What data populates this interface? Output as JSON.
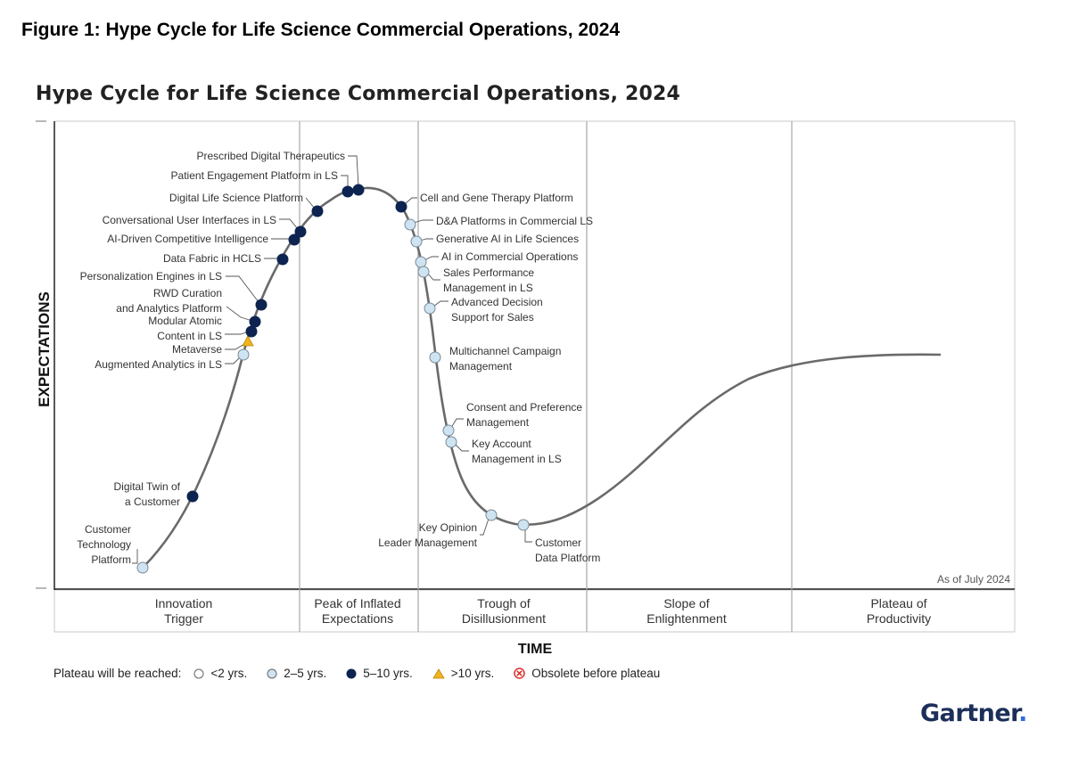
{
  "figure_caption": "Figure 1: Hype Cycle for Life Science Commercial Operations, 2024",
  "chart_data": {
    "type": "scatter",
    "title": "Hype Cycle for Life Science Commercial Operations, 2024",
    "xlabel": "TIME",
    "ylabel": "EXPECTATIONS",
    "as_of": "As of July 2024",
    "phases": [
      "Innovation Trigger",
      "Peak of Inflated Expectations",
      "Trough of Disillusionment",
      "Slope of Enlightenment",
      "Plateau of Productivity"
    ],
    "legend_title": "Plateau will be reached:",
    "legend": [
      {
        "key": "lt2",
        "label": "<2 yrs.",
        "color": "#ffffff"
      },
      {
        "key": "2to5",
        "label": "2–5 yrs.",
        "color": "#cfe4f2"
      },
      {
        "key": "5to10",
        "label": "5–10 yrs.",
        "color": "#0d2451"
      },
      {
        "key": "gt10",
        "label": ">10 yrs.",
        "color": "#f2b41e"
      },
      {
        "key": "obsolete",
        "label": "Obsolete before plateau",
        "color": "#d9302c"
      }
    ],
    "technologies": [
      {
        "name": "Customer Technology Platform",
        "phase": "Innovation Trigger",
        "plateau": "2to5"
      },
      {
        "name": "Digital Twin of a Customer",
        "phase": "Innovation Trigger",
        "plateau": "5to10"
      },
      {
        "name": "Augmented Analytics in LS",
        "phase": "Innovation Trigger",
        "plateau": "2to5"
      },
      {
        "name": "Metaverse",
        "phase": "Innovation Trigger",
        "plateau": "gt10"
      },
      {
        "name": "Modular Atomic Content in LS",
        "phase": "Innovation Trigger",
        "plateau": "5to10"
      },
      {
        "name": "RWD Curation and Analytics Platform",
        "phase": "Innovation Trigger",
        "plateau": "5to10"
      },
      {
        "name": "Personalization Engines in LS",
        "phase": "Innovation Trigger",
        "plateau": "5to10"
      },
      {
        "name": "Data Fabric in HCLS",
        "phase": "Innovation Trigger",
        "plateau": "5to10"
      },
      {
        "name": "AI-Driven Competitive Intelligence",
        "phase": "Innovation Trigger",
        "plateau": "5to10"
      },
      {
        "name": "Conversational User Interfaces in LS",
        "phase": "Innovation Trigger",
        "plateau": "5to10"
      },
      {
        "name": "Digital Life Science Platform",
        "phase": "Peak of Inflated Expectations",
        "plateau": "5to10"
      },
      {
        "name": "Patient Engagement Platform in LS",
        "phase": "Peak of Inflated Expectations",
        "plateau": "5to10"
      },
      {
        "name": "Prescribed Digital Therapeutics",
        "phase": "Peak of Inflated Expectations",
        "plateau": "5to10"
      },
      {
        "name": "Cell and Gene Therapy Platform",
        "phase": "Peak of Inflated Expectations",
        "plateau": "5to10"
      },
      {
        "name": "D&A Platforms in Commercial LS",
        "phase": "Peak of Inflated Expectations",
        "plateau": "2to5"
      },
      {
        "name": "Generative AI in Life Sciences",
        "phase": "Trough of Disillusionment",
        "plateau": "2to5"
      },
      {
        "name": "AI in Commercial Operations",
        "phase": "Trough of Disillusionment",
        "plateau": "2to5"
      },
      {
        "name": "Sales Performance Management in LS",
        "phase": "Trough of Disillusionment",
        "plateau": "2to5"
      },
      {
        "name": "Advanced Decision Support for Sales",
        "phase": "Trough of Disillusionment",
        "plateau": "2to5"
      },
      {
        "name": "Multichannel Campaign Management",
        "phase": "Trough of Disillusionment",
        "plateau": "2to5"
      },
      {
        "name": "Consent and Preference Management",
        "phase": "Trough of Disillusionment",
        "plateau": "2to5"
      },
      {
        "name": "Key Account Management in LS",
        "phase": "Trough of Disillusionment",
        "plateau": "2to5"
      },
      {
        "name": "Key Opinion Leader Management",
        "phase": "Trough of Disillusionment",
        "plateau": "2to5"
      },
      {
        "name": "Customer Data Platform",
        "phase": "Trough of Disillusionment",
        "plateau": "2to5"
      }
    ]
  },
  "brand": {
    "name": "Gartner",
    "dot": "."
  }
}
